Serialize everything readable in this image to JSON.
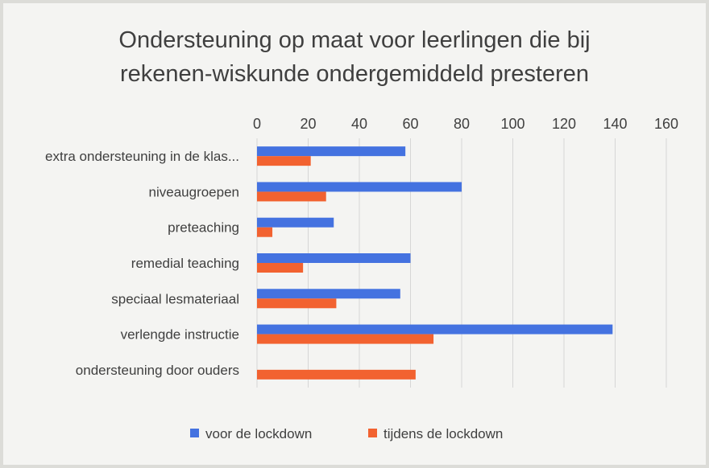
{
  "chart_data": {
    "type": "bar",
    "orientation": "horizontal",
    "title": [
      "Ondersteuning op maat voor leerlingen die bij",
      "rekenen-wiskunde ondergemiddeld presteren"
    ],
    "categories": [
      "extra ondersteuning in de klas...",
      "niveaugroepen",
      "preteaching",
      "remedial teaching",
      "speciaal lesmateriaal",
      "verlengde instructie",
      "ondersteuning door ouders"
    ],
    "series": [
      {
        "name": "voor de lockdown",
        "color": "#4472e0",
        "values": [
          58,
          80,
          30,
          60,
          56,
          139,
          0
        ]
      },
      {
        "name": "tijdens de lockdown",
        "color": "#f26230",
        "values": [
          21,
          27,
          6,
          18,
          31,
          69,
          62
        ]
      }
    ],
    "xlim": [
      0,
      160
    ],
    "xticks": [
      0,
      20,
      40,
      60,
      80,
      100,
      120,
      140,
      160
    ],
    "xaxis_position": "top",
    "grid": true,
    "legend_position": "bottom"
  }
}
